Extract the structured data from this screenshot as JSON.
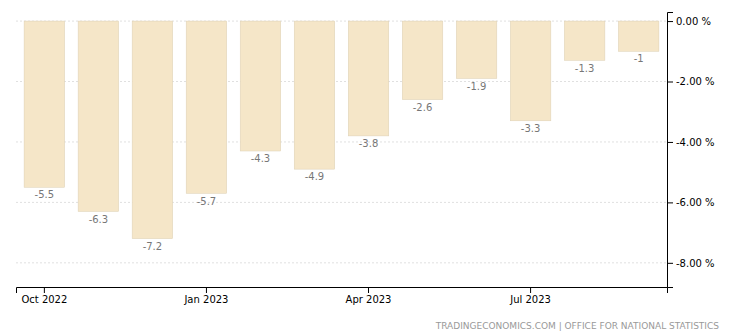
{
  "chart_data": {
    "type": "bar",
    "categories": [
      "Oct 2022",
      null,
      null,
      "Jan 2023",
      null,
      null,
      "Apr 2023",
      null,
      null,
      "Jul 2023",
      null,
      null
    ],
    "values": [
      -5.5,
      -6.3,
      -7.2,
      -5.7,
      -4.3,
      -4.9,
      -3.8,
      -2.6,
      -1.9,
      -3.3,
      -1.3,
      -1
    ],
    "color": "#f5e6c8",
    "ylim": [
      -8.8,
      0.3
    ],
    "yticks": [
      {
        "value": 0,
        "label": "0.00 %"
      },
      {
        "value": -2,
        "label": "-2.00 %"
      },
      {
        "value": -4,
        "label": "-4.00 %"
      },
      {
        "value": -6,
        "label": "-6.00 %"
      },
      {
        "value": -8,
        "label": "-8.00 %"
      }
    ],
    "grid": true,
    "data_labels": true,
    "annotations": [
      "TRADINGECONOMICS.COM  |  OFFICE FOR NATIONAL  STATISTICS"
    ]
  }
}
